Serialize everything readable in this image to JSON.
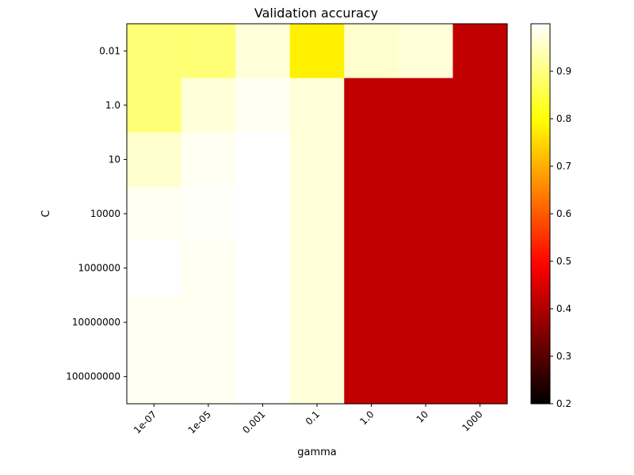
{
  "chart_data": {
    "type": "heatmap",
    "title": "Validation accuracy",
    "xlabel": "gamma",
    "ylabel": "C",
    "x_categories": [
      "1e-07",
      "1e-05",
      "0.001",
      "0.1",
      "1.0",
      "10",
      "1000"
    ],
    "y_categories": [
      "0.01",
      "1.0",
      "10",
      "10000",
      "1000000",
      "10000000",
      "100000000"
    ],
    "values": [
      [
        0.89,
        0.89,
        0.97,
        0.78,
        0.96,
        0.97,
        0.42
      ],
      [
        0.89,
        0.97,
        0.99,
        0.97,
        0.42,
        0.42,
        0.42
      ],
      [
        0.96,
        0.99,
        1.0,
        0.97,
        0.42,
        0.42,
        0.42
      ],
      [
        0.99,
        0.995,
        1.0,
        0.97,
        0.42,
        0.42,
        0.42
      ],
      [
        1.0,
        0.99,
        1.0,
        0.97,
        0.42,
        0.42,
        0.42
      ],
      [
        0.99,
        0.99,
        1.0,
        0.97,
        0.42,
        0.42,
        0.42
      ],
      [
        0.99,
        0.99,
        1.0,
        0.97,
        0.42,
        0.42,
        0.42
      ]
    ],
    "colormap": "hot",
    "vmin": 0.2,
    "vmax": 1.0,
    "colorbar_ticks": [
      "0.2",
      "0.3",
      "0.4",
      "0.5",
      "0.6",
      "0.7",
      "0.8",
      "0.9"
    ],
    "x_tick_rotation": 45
  }
}
